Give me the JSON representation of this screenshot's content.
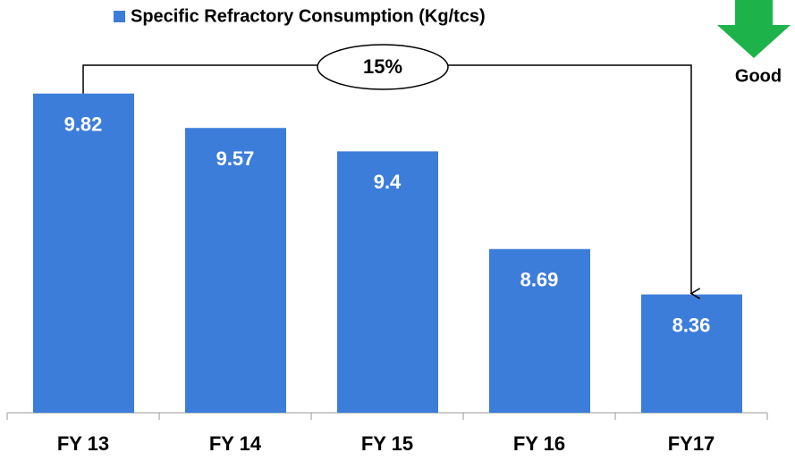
{
  "chart_data": {
    "type": "bar",
    "categories": [
      "FY 13",
      "FY 14",
      "FY 15",
      "FY 16",
      "FY17"
    ],
    "series": [
      {
        "name": "Specific Refractory Consumption (Kg/tcs)",
        "color": "#3c7dd9",
        "values": [
          9.82,
          9.57,
          9.4,
          8.69,
          8.36
        ]
      }
    ],
    "ylim": [
      7.5,
      10.5
    ],
    "annotations": {
      "change": "15%",
      "direction": "Good"
    },
    "legend": "top"
  }
}
